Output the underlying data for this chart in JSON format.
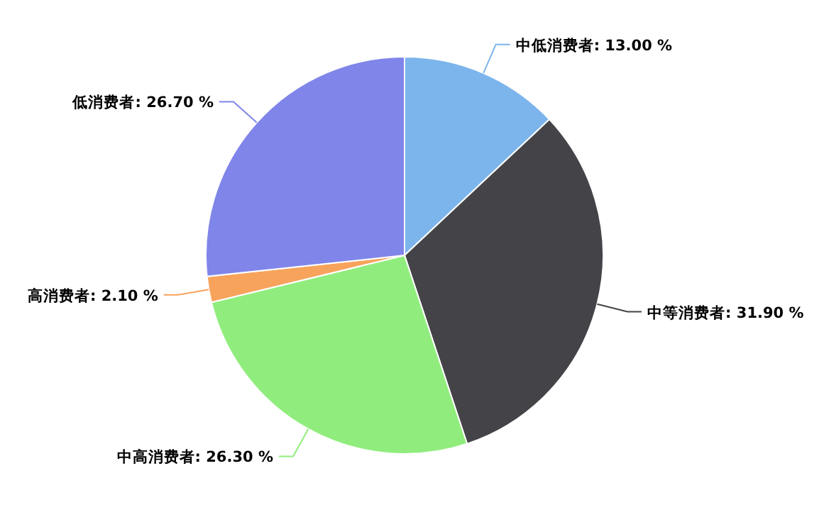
{
  "chart_data": {
    "type": "pie",
    "categories": [
      "中低消费者",
      "中等消费者",
      "中高消费者",
      "高消费者",
      "低消费者"
    ],
    "values": [
      13.0,
      31.9,
      26.3,
      2.1,
      26.7
    ],
    "value_labels": [
      "13.00 %",
      "31.90 %",
      "26.30 %",
      "2.10 %",
      "26.70 %"
    ],
    "colors": [
      "#7cb5ec",
      "#434348",
      "#90ed7d",
      "#f7a35c",
      "#8085e9"
    ]
  }
}
